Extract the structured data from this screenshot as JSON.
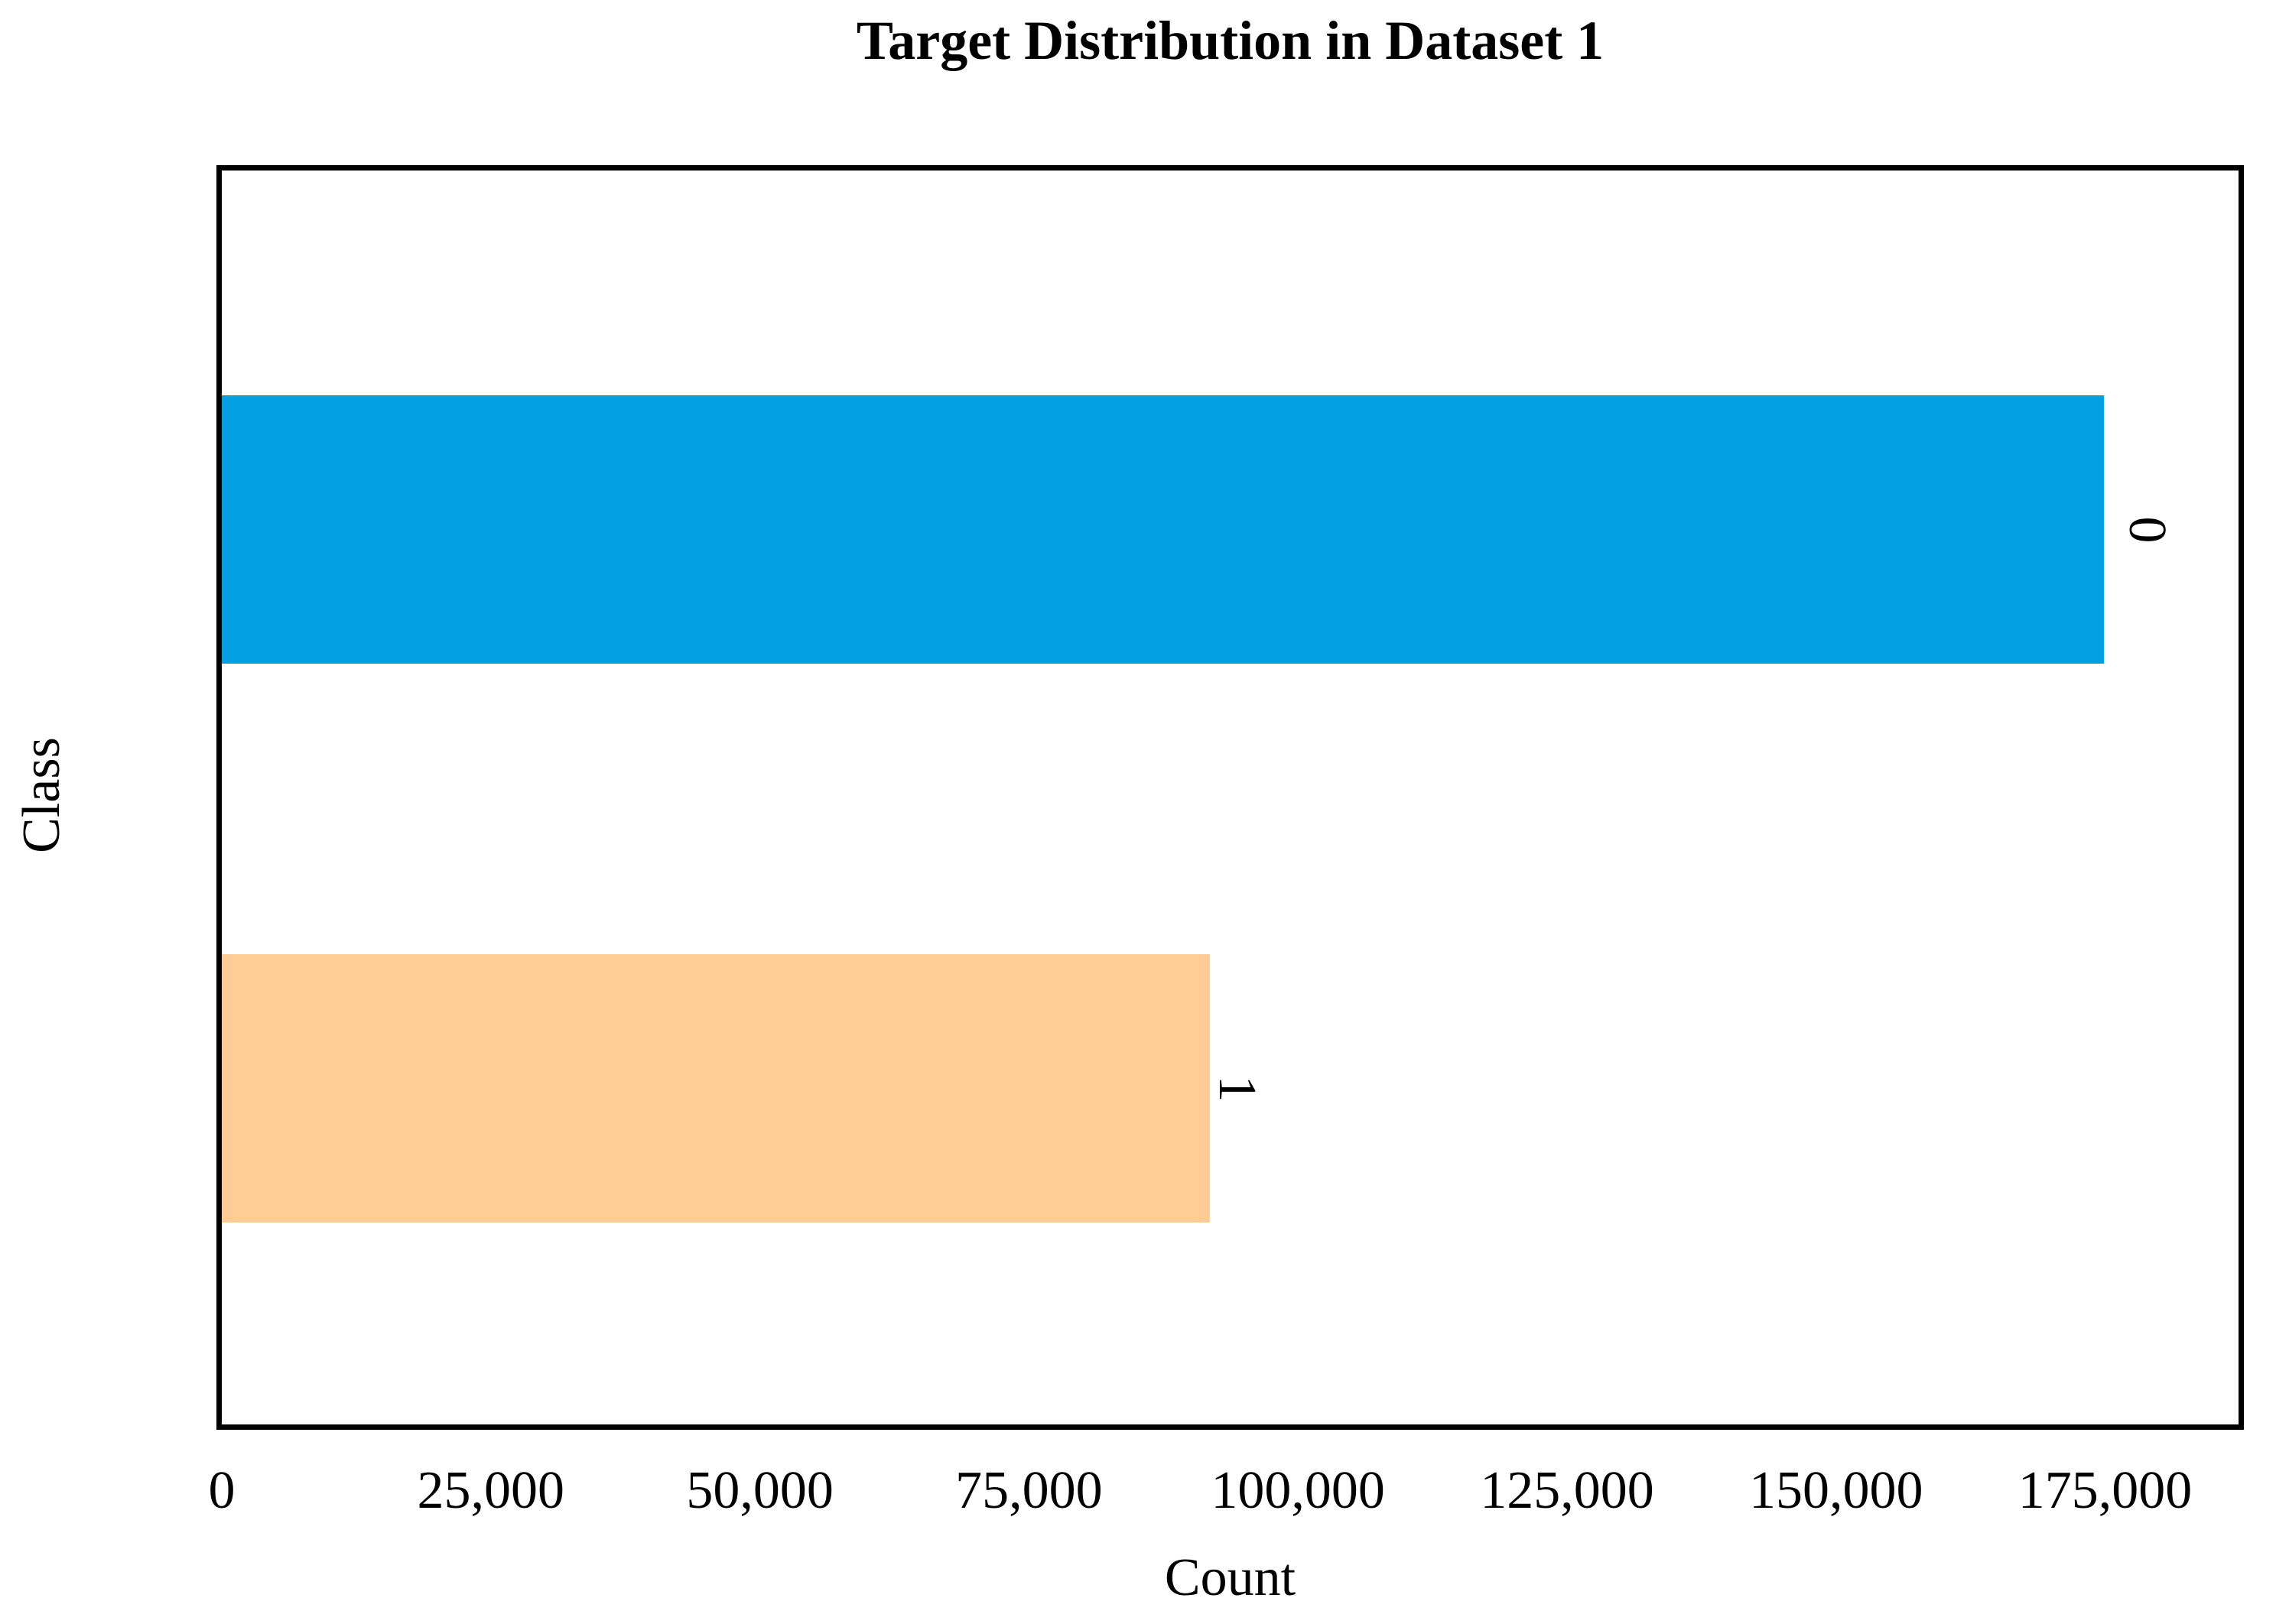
{
  "chart_data": {
    "type": "bar",
    "orientation": "horizontal",
    "title": "Target Distribution in Dataset 1",
    "xlabel": "Count",
    "ylabel": "Class",
    "categories": [
      "0",
      "1"
    ],
    "values": [
      174900,
      91800
    ],
    "bar_end_labels": [
      "0",
      "1"
    ],
    "bar_colors": [
      "#039FE3",
      "#FFCB96"
    ],
    "xlim": [
      0,
      187400
    ],
    "xticks": [
      0,
      25000,
      50000,
      75000,
      100000,
      125000,
      150000,
      175000
    ],
    "xtick_labels": [
      "0",
      "25,000",
      "50,000",
      "75,000",
      "100,000",
      "125,000",
      "150,000",
      "175,000"
    ],
    "grid": false,
    "legend": false,
    "spine_color": "#000000",
    "background_color": "#ffffff",
    "text_color": "#000000"
  }
}
